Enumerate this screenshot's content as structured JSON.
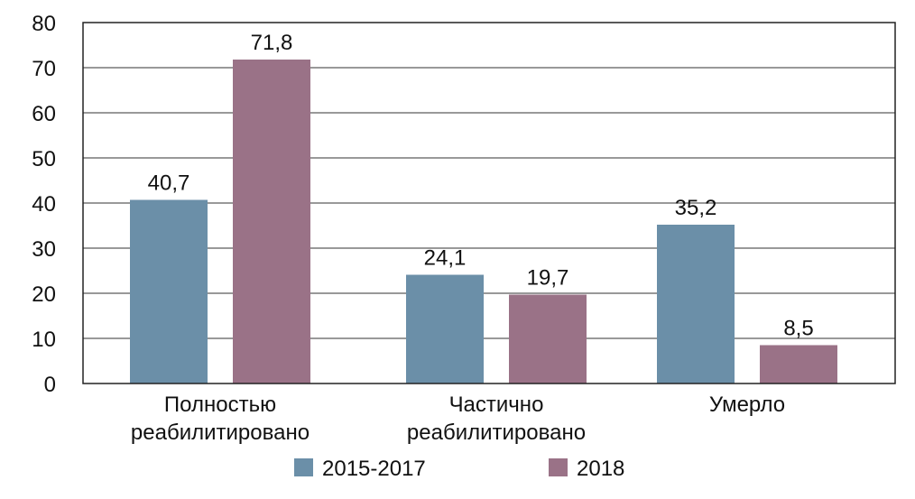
{
  "chart_data": {
    "type": "bar",
    "categories": [
      [
        "Полностью",
        "реабилитировано"
      ],
      [
        "Частично",
        "реабилитировано"
      ],
      [
        "Умерло"
      ]
    ],
    "series": [
      {
        "name": "2015-2017",
        "color": "#6b8fa8",
        "values": [
          40.7,
          24.1,
          35.2
        ],
        "labels": [
          "40,7",
          "24,1",
          "35,2"
        ]
      },
      {
        "name": "2018",
        "color": "#9a7287",
        "values": [
          71.8,
          19.7,
          8.5
        ],
        "labels": [
          "71,8",
          "19,7",
          "8,5"
        ]
      }
    ],
    "ylim": [
      0,
      80
    ],
    "yticks": [
      0,
      10,
      20,
      30,
      40,
      50,
      60,
      70,
      80
    ],
    "grid": true,
    "legend_position": "bottom"
  }
}
